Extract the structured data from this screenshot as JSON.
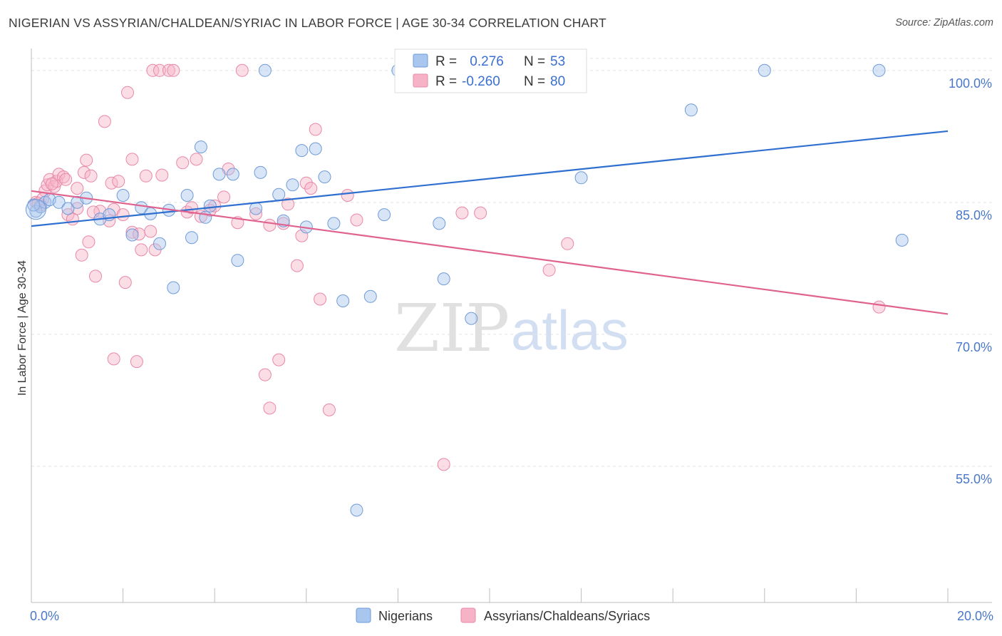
{
  "title": "NIGERIAN VS ASSYRIAN/CHALDEAN/SYRIAC IN LABOR FORCE | AGE 30-34 CORRELATION CHART",
  "source": "Source: ZipAtlas.com",
  "watermark": {
    "zip": "ZIP",
    "atlas": "atlas"
  },
  "colors": {
    "blue_fill": "#a9c6ee",
    "blue_stroke": "#6f9bd8",
    "blue_line": "#2f6fd0",
    "pink_fill": "#f6b3c8",
    "pink_stroke": "#e889a8",
    "pink_line": "#e0638f",
    "tick_text": "#4a78c8",
    "grid": "#e2e2e2"
  },
  "legend_box": {
    "rows": [
      {
        "r_label": "R =",
        "r_value": " 0.276",
        "n_label": "N =",
        "n_value": "53"
      },
      {
        "r_label": "R =",
        "r_value": "-0.260",
        "n_label": "N =",
        "n_value": "80"
      }
    ]
  },
  "chart_data": {
    "type": "scatter",
    "title": "NIGERIAN VS ASSYRIAN/CHALDEAN/SYRIAC IN LABOR FORCE | AGE 30-34 CORRELATION CHART",
    "xlabel": "",
    "ylabel": "In Labor Force | Age 30-34",
    "xlim": [
      0,
      20
    ],
    "ylim": [
      39.5,
      102.5
    ],
    "x_tick_labels": [
      {
        "value": 0,
        "label": "0.0%"
      },
      {
        "value": 20,
        "label": "20.0%"
      }
    ],
    "y_tick_labels": [
      {
        "value": 100,
        "label": "100.0%"
      },
      {
        "value": 85,
        "label": "85.0%"
      },
      {
        "value": 70,
        "label": "70.0%"
      },
      {
        "value": 55,
        "label": "55.0%"
      }
    ],
    "grid": true,
    "legend_position": "bottom",
    "series": [
      {
        "name": "Nigerians",
        "r": 0.276,
        "n": 53,
        "trend": [
          [
            0,
            82.3
          ],
          [
            20,
            93.1
          ]
        ],
        "points": [
          [
            0.1,
            84.0
          ],
          [
            0.2,
            84.5
          ],
          [
            0.3,
            85.0
          ],
          [
            0.4,
            85.3
          ],
          [
            0.6,
            85.0
          ],
          [
            0.8,
            84.3
          ],
          [
            1.0,
            85.0
          ],
          [
            1.2,
            85.5
          ],
          [
            1.5,
            83.1
          ],
          [
            1.7,
            83.6
          ],
          [
            2.0,
            85.8
          ],
          [
            2.2,
            81.3
          ],
          [
            2.4,
            84.4
          ],
          [
            2.6,
            83.7
          ],
          [
            2.8,
            80.3
          ],
          [
            3.0,
            84.1
          ],
          [
            3.1,
            75.3
          ],
          [
            3.4,
            85.8
          ],
          [
            3.5,
            81.0
          ],
          [
            3.7,
            91.3
          ],
          [
            3.8,
            83.3
          ],
          [
            3.9,
            84.6
          ],
          [
            4.1,
            88.2
          ],
          [
            4.4,
            88.2
          ],
          [
            4.5,
            78.4
          ],
          [
            4.9,
            84.3
          ],
          [
            5.0,
            88.4
          ],
          [
            5.1,
            100.0
          ],
          [
            5.4,
            85.9
          ],
          [
            5.5,
            82.9
          ],
          [
            5.7,
            87.0
          ],
          [
            5.9,
            90.9
          ],
          [
            6.0,
            82.2
          ],
          [
            6.2,
            91.1
          ],
          [
            6.4,
            87.9
          ],
          [
            6.6,
            82.6
          ],
          [
            6.8,
            73.8
          ],
          [
            7.1,
            50.0
          ],
          [
            7.4,
            74.3
          ],
          [
            7.7,
            83.6
          ],
          [
            8.0,
            100.0
          ],
          [
            8.9,
            82.6
          ],
          [
            9.0,
            76.3
          ],
          [
            9.6,
            71.8
          ],
          [
            9.8,
            100.0
          ],
          [
            10.3,
            100.0
          ],
          [
            10.7,
            100.0
          ],
          [
            12.0,
            87.8
          ],
          [
            14.4,
            95.5
          ],
          [
            16.0,
            100.0
          ],
          [
            18.5,
            100.0
          ],
          [
            19.0,
            80.7
          ],
          [
            0.05,
            84.7
          ]
        ]
      },
      {
        "name": "Assyrians/Chaldeans/Syriacs",
        "r": -0.26,
        "n": 80,
        "trend": [
          [
            0,
            86.3
          ],
          [
            20,
            72.3
          ]
        ],
        "points": [
          [
            0.1,
            85.0
          ],
          [
            0.2,
            84.7
          ],
          [
            0.3,
            86.3
          ],
          [
            0.35,
            87.0
          ],
          [
            0.4,
            87.6
          ],
          [
            0.5,
            86.8
          ],
          [
            0.55,
            87.4
          ],
          [
            0.6,
            88.2
          ],
          [
            0.7,
            87.9
          ],
          [
            0.75,
            87.6
          ],
          [
            0.8,
            83.6
          ],
          [
            0.9,
            83.1
          ],
          [
            1.0,
            84.3
          ],
          [
            1.0,
            86.6
          ],
          [
            1.1,
            79.0
          ],
          [
            1.15,
            88.4
          ],
          [
            1.2,
            89.8
          ],
          [
            1.25,
            80.5
          ],
          [
            1.3,
            88.0
          ],
          [
            1.4,
            76.6
          ],
          [
            1.5,
            84.0
          ],
          [
            1.6,
            94.2
          ],
          [
            1.7,
            82.9
          ],
          [
            1.75,
            87.2
          ],
          [
            1.8,
            84.2
          ],
          [
            1.8,
            67.2
          ],
          [
            1.9,
            87.4
          ],
          [
            2.0,
            83.6
          ],
          [
            2.05,
            75.9
          ],
          [
            2.1,
            97.5
          ],
          [
            2.2,
            81.6
          ],
          [
            2.2,
            89.9
          ],
          [
            2.3,
            66.9
          ],
          [
            2.4,
            79.6
          ],
          [
            2.5,
            88.0
          ],
          [
            2.6,
            81.7
          ],
          [
            2.65,
            100.0
          ],
          [
            2.7,
            79.6
          ],
          [
            2.8,
            100.0
          ],
          [
            2.85,
            88.1
          ],
          [
            3.0,
            100.0
          ],
          [
            3.1,
            100.0
          ],
          [
            3.3,
            89.5
          ],
          [
            3.4,
            83.9
          ],
          [
            3.5,
            84.4
          ],
          [
            3.6,
            89.9
          ],
          [
            3.7,
            83.4
          ],
          [
            3.9,
            84.1
          ],
          [
            4.0,
            84.6
          ],
          [
            4.2,
            85.6
          ],
          [
            4.3,
            88.8
          ],
          [
            4.5,
            82.7
          ],
          [
            4.6,
            100.0
          ],
          [
            4.9,
            83.7
          ],
          [
            5.1,
            65.4
          ],
          [
            5.2,
            82.4
          ],
          [
            5.2,
            61.6
          ],
          [
            5.4,
            67.1
          ],
          [
            5.5,
            82.6
          ],
          [
            5.6,
            84.8
          ],
          [
            5.8,
            77.8
          ],
          [
            5.9,
            81.2
          ],
          [
            6.0,
            87.2
          ],
          [
            6.1,
            86.6
          ],
          [
            6.2,
            93.3
          ],
          [
            6.3,
            74.0
          ],
          [
            6.5,
            61.4
          ],
          [
            6.9,
            85.8
          ],
          [
            7.1,
            83.0
          ],
          [
            9.0,
            55.2
          ],
          [
            9.4,
            83.8
          ],
          [
            9.8,
            83.8
          ],
          [
            11.3,
            77.3
          ],
          [
            11.7,
            80.3
          ],
          [
            18.5,
            73.1
          ],
          [
            0.15,
            84.9
          ],
          [
            0.25,
            85.4
          ],
          [
            0.45,
            87.1
          ],
          [
            1.35,
            83.9
          ],
          [
            2.35,
            81.4
          ]
        ]
      }
    ]
  },
  "bottom_legend": {
    "items": [
      {
        "label": "Nigerians"
      },
      {
        "label": "Assyrians/Chaldeans/Syriacs"
      }
    ]
  }
}
